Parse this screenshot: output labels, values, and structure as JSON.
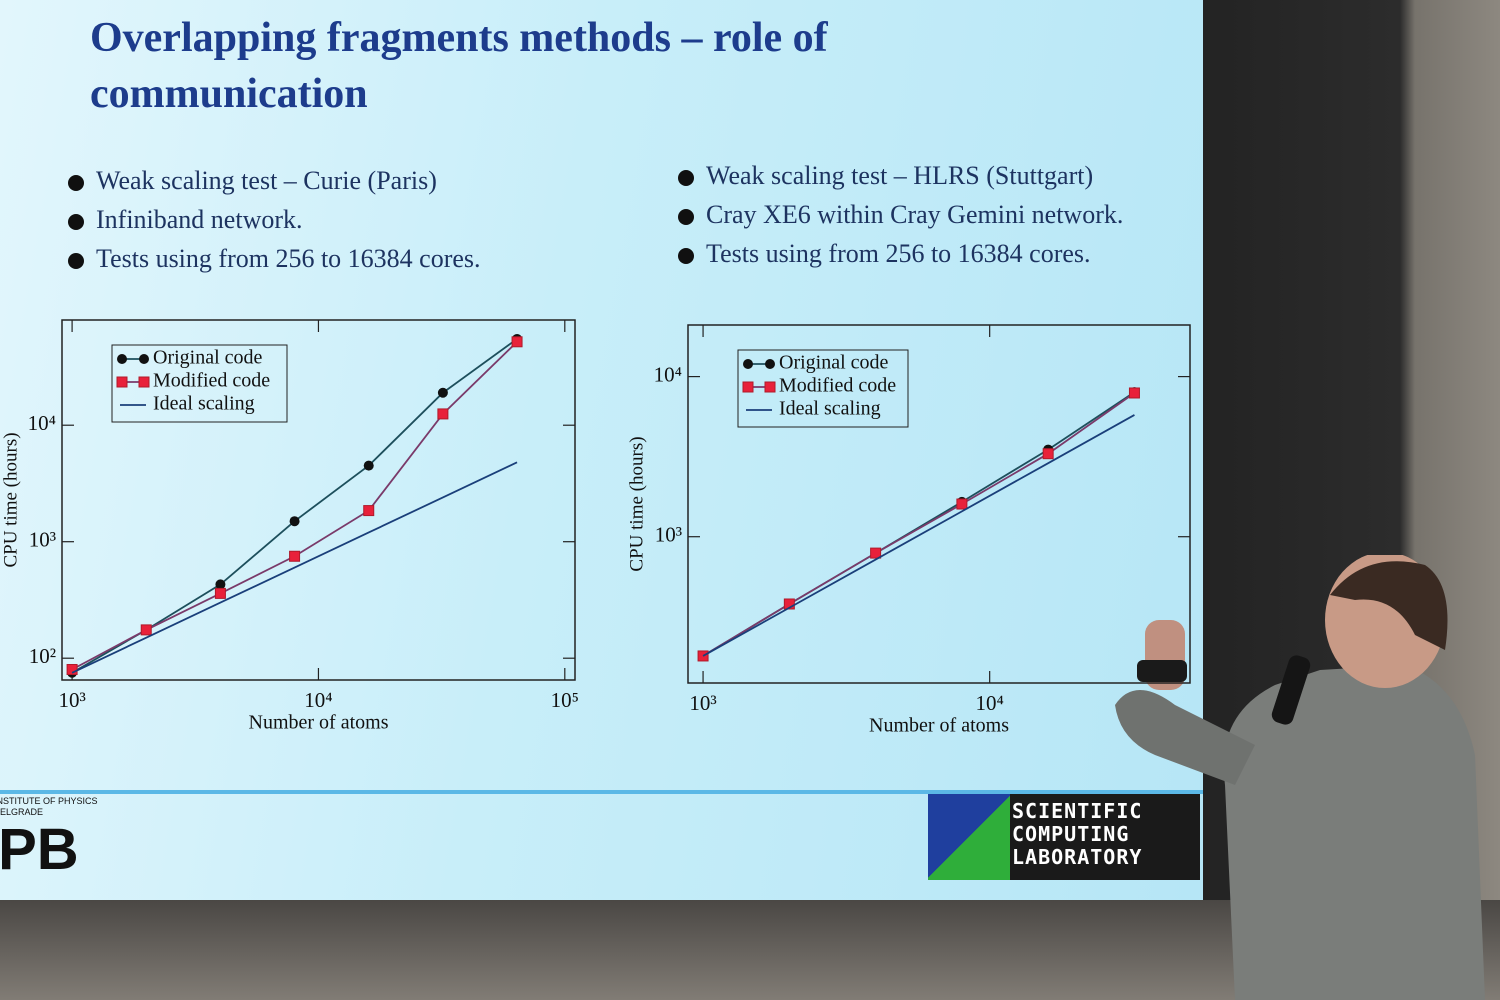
{
  "title": "Overlapping fragments methods – role of communication",
  "bullets_left": [
    "Weak scaling test – Curie (Paris)",
    "Infiniband network.",
    "Tests using from 256 to 16384 cores."
  ],
  "bullets_right": [
    "Weak scaling test – HLRS (Stuttgart)",
    "Cray XE6 within Cray Gemini network.",
    "Tests using from 256 to 16384 cores."
  ],
  "logos": {
    "ipb_lines": [
      "INSTITUTE OF PHYSICS",
      "BELGRADE"
    ],
    "ipb_mark": "IPB",
    "scl_lines": [
      "SCIENTIFIC",
      "COMPUTING",
      "LABORATORY"
    ]
  },
  "chart_data": [
    {
      "type": "line",
      "x_label": "Number of atoms",
      "y_label": "CPU time (hours)",
      "x_scale": "log",
      "y_scale": "log",
      "legend": "upper left",
      "x": [
        1000,
        2000,
        4000,
        8000,
        16000,
        32000,
        64000
      ],
      "series": [
        {
          "name": "Original code",
          "color": "#1d4f5c",
          "marker": "circle",
          "values": [
            75,
            175,
            430,
            1500,
            4500,
            19000,
            55000
          ]
        },
        {
          "name": "Modified code",
          "color": "#e8213a",
          "marker": "square",
          "values": [
            80,
            175,
            360,
            750,
            1850,
            12500,
            52000
          ]
        },
        {
          "name": "Ideal scaling",
          "color": "#1a3f7a",
          "marker": null,
          "values": [
            75,
            150,
            300,
            600,
            1200,
            2400,
            4800
          ]
        }
      ],
      "xlim": [
        910,
        110000
      ],
      "ylim": [
        65,
        80000
      ],
      "xticks": [
        {
          "value": 1000,
          "label": "10³"
        },
        {
          "value": 10000,
          "label": "10⁴"
        },
        {
          "value": 100000,
          "label": "10⁵"
        }
      ],
      "yticks": [
        {
          "value": 100,
          "label": "10²"
        },
        {
          "value": 1000,
          "label": "10³"
        },
        {
          "value": 10000,
          "label": "10⁴"
        }
      ]
    },
    {
      "type": "line",
      "x_label": "Number of atoms",
      "y_label": "CPU time (hours)",
      "x_scale": "log",
      "y_scale": "log",
      "legend": "upper left",
      "x": [
        1000,
        2000,
        4000,
        8000,
        16000,
        32000
      ],
      "series": [
        {
          "name": "Original code",
          "color": "#1d4f5c",
          "marker": "circle",
          "values": [
            180,
            380,
            790,
            1650,
            3500,
            8000
          ]
        },
        {
          "name": "Modified code",
          "color": "#e8213a",
          "marker": "square",
          "values": [
            180,
            380,
            790,
            1600,
            3300,
            7900
          ]
        },
        {
          "name": "Ideal scaling",
          "color": "#1a3f7a",
          "marker": null,
          "values": [
            180,
            360,
            720,
            1440,
            2880,
            5760
          ]
        }
      ],
      "xlim": [
        886,
        50000
      ],
      "ylim": [
        122,
        21000
      ],
      "xticks": [
        {
          "value": 1000,
          "label": "10³"
        },
        {
          "value": 10000,
          "label": "10⁴"
        }
      ],
      "yticks": [
        {
          "value": 1000,
          "label": "10³"
        },
        {
          "value": 10000,
          "label": "10⁴"
        }
      ]
    }
  ]
}
